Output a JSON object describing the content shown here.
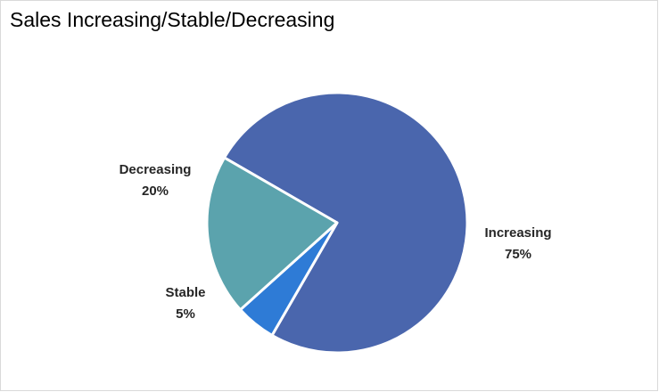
{
  "chart_data": {
    "type": "pie",
    "title": "Sales Increasing/Stable/Decreasing",
    "slices": [
      {
        "label": "Increasing",
        "value": 75,
        "value_label": "75%",
        "color": "#4a66ad"
      },
      {
        "label": "Stable",
        "value": 5,
        "value_label": "5%",
        "color": "#2e7bd6"
      },
      {
        "label": "Decreasing",
        "value": 20,
        "value_label": "20%",
        "color": "#5ba3ad"
      }
    ],
    "legend": "none",
    "data_labels": "outside, category and percentage"
  }
}
